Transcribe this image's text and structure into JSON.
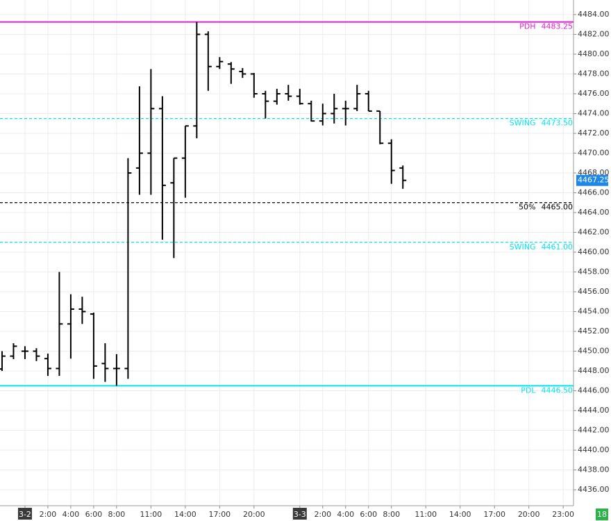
{
  "chart_data": {
    "type": "ohlc",
    "x": [
      -2,
      -1,
      0,
      1,
      2,
      3,
      4,
      5,
      6,
      7,
      8,
      9,
      10,
      11,
      12,
      13,
      14,
      15,
      16,
      17,
      18,
      19,
      20,
      21,
      22,
      23,
      24,
      25,
      26,
      27,
      28,
      29,
      30,
      31,
      32,
      33
    ],
    "open": [
      4448.2,
      4449.5,
      4450.0,
      4450.0,
      4449.25,
      4448.25,
      4452.75,
      4454.25,
      4453.75,
      4448.75,
      4448.25,
      4448.25,
      4468.5,
      4470.0,
      4474.5,
      4467.0,
      4469.5,
      4472.75,
      4482.0,
      4478.75,
      4479.0,
      4478.25,
      4478.0,
      4476.0,
      4475.25,
      4476.0,
      4475.75,
      4475.0,
      4473.25,
      4474.0,
      4474.5,
      4474.5,
      4476.0,
      4474.25,
      4471.0,
      4468.5
    ],
    "high": [
      4450.0,
      4450.8,
      4450.5,
      4450.3,
      4449.75,
      4458.0,
      4455.75,
      4455.5,
      4453.9,
      4450.8,
      4449.7,
      4469.5,
      4476.75,
      4478.5,
      4475.75,
      4469.5,
      4472.75,
      4483.25,
      4482.3,
      4479.7,
      4479.2,
      4478.6,
      4478.1,
      4476.3,
      4476.5,
      4476.9,
      4476.5,
      4475.3,
      4475.0,
      4476.0,
      4475.3,
      4476.9,
      4476.3,
      4474.25,
      4471.4,
      4468.75
    ],
    "low": [
      4448.0,
      4449.2,
      4449.2,
      4449.0,
      4447.5,
      4447.5,
      4449.25,
      4452.75,
      4447.2,
      4446.9,
      4446.5,
      4447.2,
      4465.8,
      4465.8,
      4461.25,
      4459.4,
      4465.5,
      4471.5,
      4476.3,
      4478.5,
      4477.0,
      4477.6,
      4475.6,
      4473.5,
      4474.9,
      4475.3,
      4474.9,
      4473.2,
      4472.8,
      4473.0,
      4472.8,
      4474.25,
      4474.25,
      4470.9,
      4466.9,
      4466.4
    ],
    "close": [
      4449.5,
      4450.5,
      4450.0,
      4449.5,
      4448.25,
      4452.75,
      4454.25,
      4454.0,
      4448.5,
      4448.25,
      4448.25,
      4468.0,
      4470.0,
      4474.5,
      4466.75,
      4469.5,
      4472.75,
      4482.0,
      4478.75,
      4479.25,
      4478.5,
      4478.0,
      4476.0,
      4475.25,
      4476.0,
      4475.75,
      4475.0,
      4473.25,
      4474.0,
      4474.5,
      4474.5,
      4476.0,
      4474.25,
      4471.0,
      4468.25,
      4467.25
    ],
    "color": "#000000",
    "xlim": [
      -2.18,
      47.9
    ],
    "xticks": [
      {
        "value": 0,
        "label": "3-2"
      },
      {
        "value": 2,
        "label": "2:00"
      },
      {
        "value": 4,
        "label": "4:00"
      },
      {
        "value": 6,
        "label": "6:00"
      },
      {
        "value": 8,
        "label": "8:00"
      },
      {
        "value": 11,
        "label": "11:00"
      },
      {
        "value": 14,
        "label": "14:00"
      },
      {
        "value": 17,
        "label": "17:00"
      },
      {
        "value": 20,
        "label": "20:00"
      },
      {
        "value": 24,
        "label": "3-3"
      },
      {
        "value": 26,
        "label": "2:00"
      },
      {
        "value": 28,
        "label": "4:00"
      },
      {
        "value": 30,
        "label": "6:00"
      },
      {
        "value": 32,
        "label": "8:00"
      },
      {
        "value": 35,
        "label": "11:00"
      },
      {
        "value": 38,
        "label": "14:00"
      },
      {
        "value": 41,
        "label": "17:00"
      },
      {
        "value": 44,
        "label": "20:00"
      },
      {
        "value": 47,
        "label": "23:00"
      }
    ],
    "ylim": [
      4434.39,
      4485.47
    ],
    "yticks": [
      {
        "value": 4436,
        "label": "4436.00"
      },
      {
        "value": 4438,
        "label": "4438.00"
      },
      {
        "value": 4440,
        "label": "4440.00"
      },
      {
        "value": 4442,
        "label": "4442.00"
      },
      {
        "value": 4444,
        "label": "4444.00"
      },
      {
        "value": 4446,
        "label": "4446.00"
      },
      {
        "value": 4448,
        "label": "4448.00"
      },
      {
        "value": 4450,
        "label": "4450.00"
      },
      {
        "value": 4452,
        "label": "4452.00"
      },
      {
        "value": 4454,
        "label": "4454.00"
      },
      {
        "value": 4456,
        "label": "4456.00"
      },
      {
        "value": 4458,
        "label": "4458.00"
      },
      {
        "value": 4460,
        "label": "4460.00"
      },
      {
        "value": 4462,
        "label": "4462.00"
      },
      {
        "value": 4464,
        "label": "4464.00"
      },
      {
        "value": 4466,
        "label": "4466.00"
      },
      {
        "value": 4468,
        "label": "4468.00"
      },
      {
        "value": 4470,
        "label": "4470.00"
      },
      {
        "value": 4472,
        "label": "4472.00"
      },
      {
        "value": 4474,
        "label": "4474.00"
      },
      {
        "value": 4476,
        "label": "4476.00"
      },
      {
        "value": 4478,
        "label": "4478.00"
      },
      {
        "value": 4480,
        "label": "4480.00"
      },
      {
        "value": 4482,
        "label": "4482.00"
      },
      {
        "value": 4484,
        "label": "4484.00"
      }
    ],
    "grid": true,
    "levels": {
      "names": [
        "PDH",
        "SWING",
        "50%",
        "SWING",
        "PDL"
      ],
      "values": [
        4483.25,
        4473.5,
        4465.0,
        4461.0,
        4446.5
      ],
      "value_labels": [
        "4483.25",
        "4473.50",
        "4465.00",
        "4461.00",
        "4446.50"
      ],
      "colors": [
        "#e020d0",
        "#00e5f0",
        "#000000",
        "#00e5f0",
        "#00e5f0"
      ],
      "dashed": [
        false,
        true,
        true,
        true,
        false
      ]
    },
    "last_price": {
      "value": 4467.25,
      "color": "#1e88e5"
    },
    "corner_badge": "18"
  }
}
